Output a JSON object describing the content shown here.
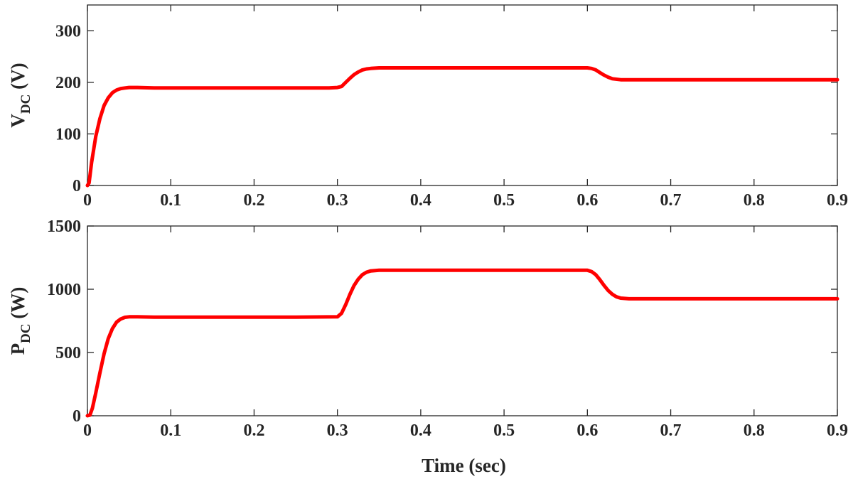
{
  "colors": {
    "series": "#ff0000",
    "axes": "#262626",
    "background": "#ffffff"
  },
  "chart_data": [
    {
      "type": "line",
      "id": "vdc",
      "ylabel_main": "V",
      "ylabel_sub": "DC",
      "ylabel_unit": "(V)",
      "xlabel": "",
      "xlim": [
        0,
        0.9
      ],
      "ylim": [
        0,
        350
      ],
      "xticks": [
        0,
        0.1,
        0.2,
        0.3,
        0.4,
        0.5,
        0.6,
        0.7,
        0.8,
        0.9
      ],
      "xtick_labels": [
        "0",
        "0.1",
        "0.2",
        "0.3",
        "0.4",
        "0.5",
        "0.6",
        "0.7",
        "0.8",
        "0.9"
      ],
      "yticks": [
        0,
        100,
        200,
        300
      ],
      "ytick_labels": [
        "0",
        "100",
        "200",
        "300"
      ],
      "series": [
        {
          "name": "VDC",
          "x": [
            0,
            0.002,
            0.005,
            0.01,
            0.015,
            0.02,
            0.025,
            0.03,
            0.035,
            0.04,
            0.045,
            0.05,
            0.06,
            0.08,
            0.1,
            0.15,
            0.2,
            0.25,
            0.29,
            0.3,
            0.305,
            0.31,
            0.315,
            0.32,
            0.325,
            0.33,
            0.335,
            0.34,
            0.35,
            0.4,
            0.5,
            0.59,
            0.6,
            0.605,
            0.61,
            0.615,
            0.62,
            0.625,
            0.63,
            0.64,
            0.65,
            0.7,
            0.8,
            0.9
          ],
          "y": [
            0,
            5,
            45,
            95,
            130,
            155,
            170,
            180,
            185,
            188,
            189,
            190,
            190,
            189,
            189,
            189,
            189,
            189,
            189,
            190,
            192,
            200,
            208,
            215,
            220,
            224,
            226,
            227,
            228,
            228,
            228,
            228,
            228,
            227,
            224,
            219,
            214,
            210,
            207,
            205,
            205,
            205,
            205,
            205
          ]
        }
      ]
    },
    {
      "type": "line",
      "id": "pdc",
      "ylabel_main": "P",
      "ylabel_sub": "DC",
      "ylabel_unit": "(W)",
      "xlabel": "Time (sec)",
      "xlim": [
        0,
        0.9
      ],
      "ylim": [
        0,
        1500
      ],
      "xticks": [
        0,
        0.1,
        0.2,
        0.3,
        0.4,
        0.5,
        0.6,
        0.7,
        0.8,
        0.9
      ],
      "xtick_labels": [
        "0",
        "0.1",
        "0.2",
        "0.3",
        "0.4",
        "0.5",
        "0.6",
        "0.7",
        "0.8",
        "0.9"
      ],
      "yticks": [
        0,
        500,
        1000,
        1500
      ],
      "ytick_labels": [
        "0",
        "500",
        "1000",
        "1500"
      ],
      "series": [
        {
          "name": "PDC",
          "x": [
            0,
            0.003,
            0.006,
            0.01,
            0.015,
            0.02,
            0.025,
            0.03,
            0.035,
            0.04,
            0.045,
            0.05,
            0.06,
            0.08,
            0.1,
            0.15,
            0.2,
            0.25,
            0.3,
            0.305,
            0.31,
            0.315,
            0.32,
            0.325,
            0.33,
            0.335,
            0.34,
            0.35,
            0.36,
            0.4,
            0.5,
            0.6,
            0.605,
            0.61,
            0.615,
            0.62,
            0.625,
            0.63,
            0.635,
            0.64,
            0.65,
            0.7,
            0.8,
            0.9
          ],
          "y": [
            0,
            5,
            60,
            180,
            340,
            490,
            610,
            690,
            740,
            765,
            778,
            782,
            782,
            780,
            780,
            780,
            780,
            780,
            782,
            810,
            880,
            960,
            1030,
            1080,
            1115,
            1135,
            1145,
            1150,
            1150,
            1150,
            1150,
            1150,
            1140,
            1115,
            1075,
            1030,
            990,
            960,
            940,
            930,
            925,
            925,
            925,
            925
          ]
        }
      ]
    }
  ]
}
